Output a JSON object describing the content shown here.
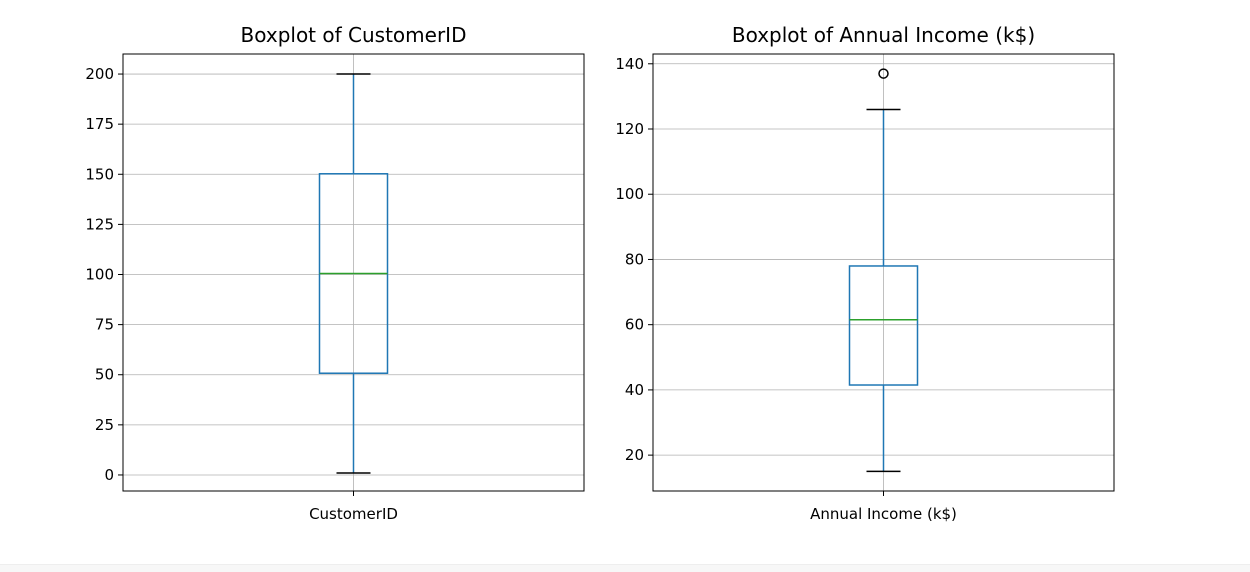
{
  "chart_data": [
    {
      "type": "box",
      "title": "Boxplot of CustomerID",
      "categories": [
        "CustomerID"
      ],
      "ylim": [
        -8,
        210
      ],
      "yticks": [
        0,
        25,
        50,
        75,
        100,
        125,
        150,
        175,
        200
      ],
      "grid": true,
      "box": {
        "whisker_low": 1,
        "q1": 50.75,
        "median": 100.5,
        "q3": 150.25,
        "whisker_high": 200,
        "outliers": []
      }
    },
    {
      "type": "box",
      "title": "Boxplot of Annual Income (k$)",
      "categories": [
        "Annual Income (k$)"
      ],
      "ylim": [
        9,
        143
      ],
      "yticks": [
        20,
        40,
        60,
        80,
        100,
        120,
        140
      ],
      "grid": true,
      "box": {
        "whisker_low": 15,
        "q1": 41.5,
        "median": 61.5,
        "q3": 78,
        "whisker_high": 126,
        "outliers": [
          137
        ]
      }
    }
  ],
  "colors": {
    "box": "#1f77b4",
    "median": "#2ca02c",
    "grid": "#b0b0b0",
    "axes": "#000000",
    "outlier_marker": "#000000"
  }
}
